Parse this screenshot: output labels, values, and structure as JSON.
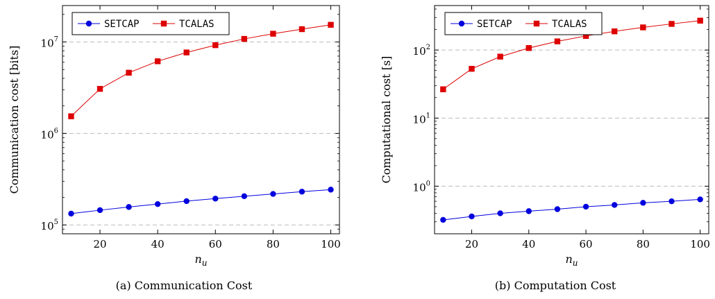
{
  "chart_data": [
    {
      "type": "line",
      "caption": "(a)  Communication Cost",
      "xlabel_base": "n",
      "xlabel_sub": "u",
      "ylabel": "Communication cost [bits]",
      "yscale": "log",
      "xlim": [
        7,
        103
      ],
      "ylim": [
        80000,
        25000000
      ],
      "xticks": [
        20,
        40,
        60,
        80,
        100
      ],
      "yticks": [
        {
          "base": "10",
          "exp": "5",
          "value": 100000
        },
        {
          "base": "10",
          "exp": "6",
          "value": 1000000
        },
        {
          "base": "10",
          "exp": "7",
          "value": 10000000
        }
      ],
      "grid": "major y, dashed",
      "legend": "top-left",
      "x": [
        10,
        20,
        30,
        40,
        50,
        60,
        70,
        80,
        90,
        100
      ],
      "series": [
        {
          "name": "SETCAP",
          "color": "#0000dd",
          "marker": "circle",
          "values": [
            133000,
            145000,
            157000,
            169000,
            182000,
            194000,
            206000,
            218000,
            231000,
            243000
          ]
        },
        {
          "name": "TCALAS",
          "color": "#dd0000",
          "marker": "square",
          "values": [
            1540000,
            3070000,
            4610000,
            6150000,
            7680000,
            9220000,
            10800000,
            12300000,
            13800000,
            15400000
          ]
        }
      ]
    },
    {
      "type": "line",
      "caption": "(b)  Computation Cost",
      "xlabel_base": "n",
      "xlabel_sub": "u",
      "ylabel": "Computational cost [s]",
      "yscale": "log",
      "xlim": [
        7,
        103
      ],
      "ylim": [
        0.2,
        450
      ],
      "xticks": [
        20,
        40,
        60,
        80,
        100
      ],
      "yticks": [
        {
          "base": "10",
          "exp": "0",
          "value": 1
        },
        {
          "base": "10",
          "exp": "1",
          "value": 10
        },
        {
          "base": "10",
          "exp": "2",
          "value": 100
        }
      ],
      "grid": "major y, dashed",
      "legend": "top-left",
      "x": [
        10,
        20,
        30,
        40,
        50,
        60,
        70,
        80,
        90,
        100
      ],
      "series": [
        {
          "name": "SETCAP",
          "color": "#0000dd",
          "marker": "circle",
          "values": [
            0.32,
            0.36,
            0.4,
            0.43,
            0.46,
            0.5,
            0.53,
            0.57,
            0.6,
            0.64
          ]
        },
        {
          "name": "TCALAS",
          "color": "#dd0000",
          "marker": "square",
          "values": [
            26.5,
            53,
            80,
            107,
            134,
            161,
            188,
            215,
            242,
            270
          ]
        }
      ]
    }
  ]
}
